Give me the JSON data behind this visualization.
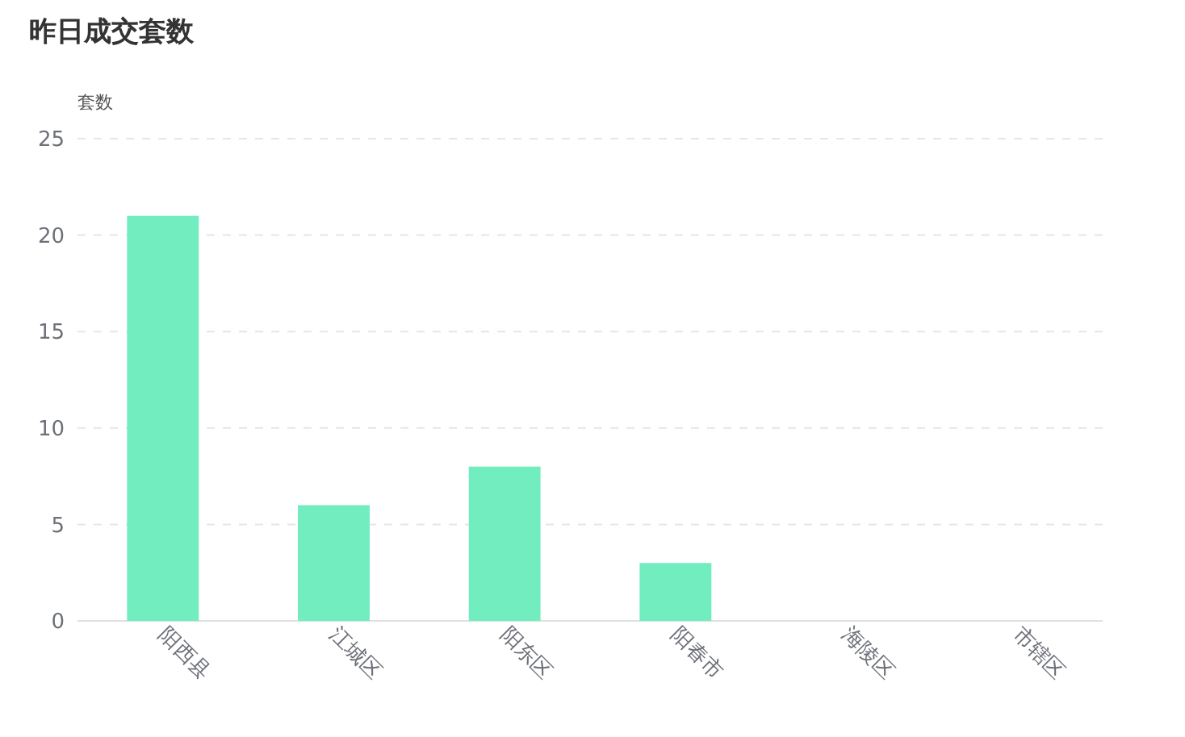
{
  "chart_data": {
    "type": "bar",
    "title": "昨日成交套数",
    "ylabel": "套数",
    "categories": [
      "阳西县",
      "江城区",
      "阳东区",
      "阳春市",
      "海陵区",
      "市辖区"
    ],
    "values": [
      21,
      6,
      8,
      3,
      0,
      0
    ],
    "color": "#72edbf",
    "ylim": [
      0,
      25
    ],
    "yticks": [
      0,
      5,
      10,
      15,
      20,
      25
    ],
    "grid": "y"
  }
}
